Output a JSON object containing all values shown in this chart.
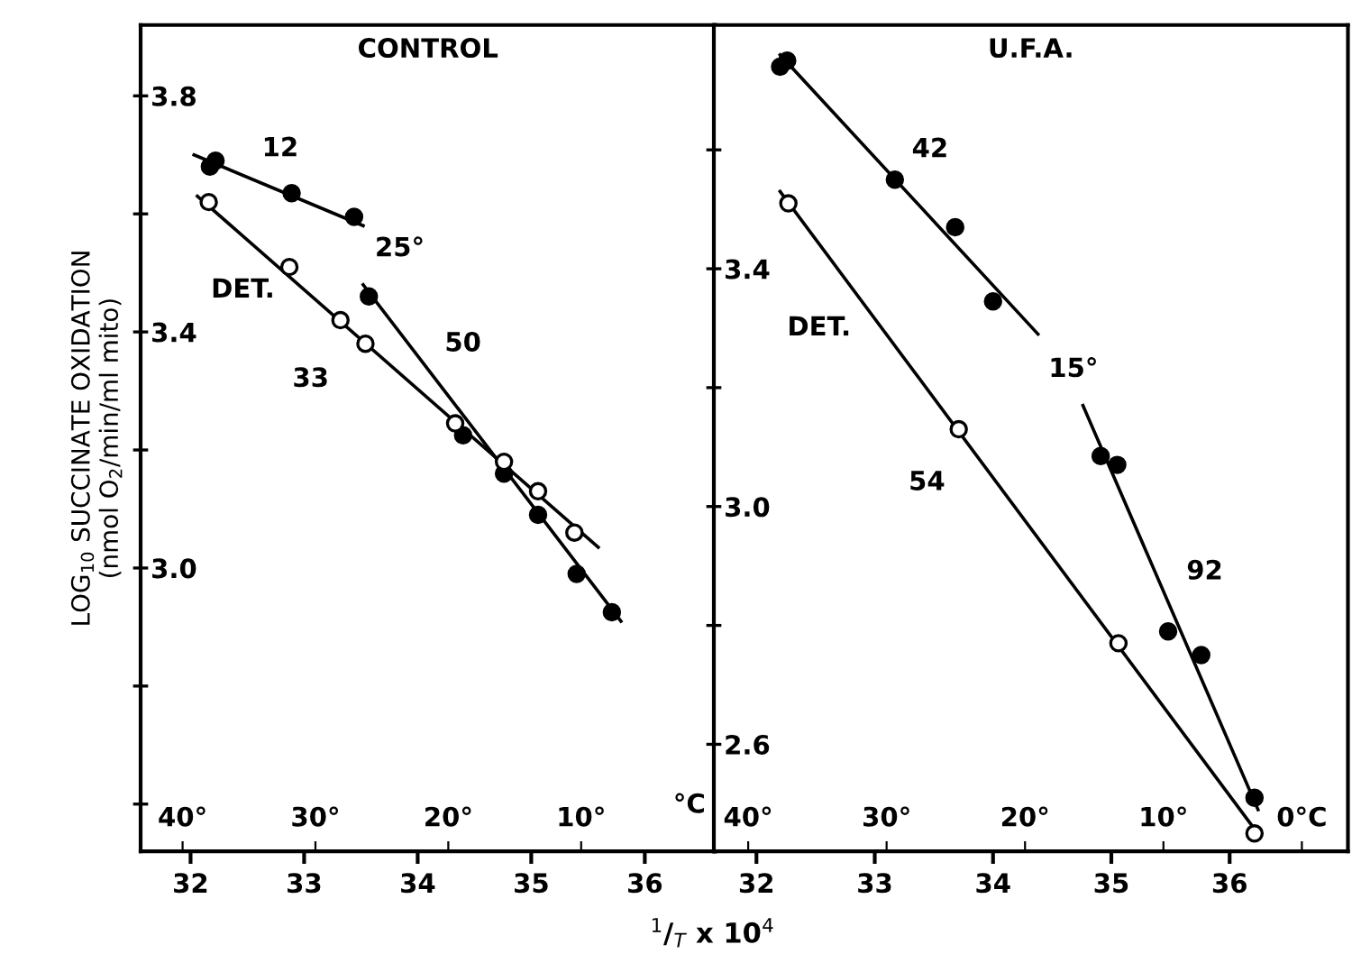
{
  "chart_data": [
    {
      "type": "scatter",
      "title": "CONTROL",
      "ylabel": "LOG$_{10}$ SUCCINATE OXIDATION\n(nmol O$_{2}$/min/ml mito)",
      "xlabel": "$^{1}$/$_{T}$ x 10$^{4}$",
      "grid": false,
      "legend": false,
      "xlim": [
        31.56,
        36.62
      ],
      "ylim": [
        2.52,
        3.92
      ],
      "xticks": [
        32,
        33,
        34,
        35,
        36
      ],
      "yticks": [
        {
          "value": 2.6,
          "label": null
        },
        {
          "value": 2.8,
          "label": null
        },
        {
          "value": 3.0,
          "label": "3.0"
        },
        {
          "value": 3.2,
          "label": null
        },
        {
          "value": 3.4,
          "label": "3.4"
        },
        {
          "value": 3.6,
          "label": null
        },
        {
          "value": 3.8,
          "label": "3.8"
        }
      ],
      "x2lim": [
        43.16,
        -0.09
      ],
      "x2label": "°C",
      "x2ticks": [
        {
          "value": 40,
          "label": "40°"
        },
        {
          "value": 30,
          "label": "30°"
        },
        {
          "value": 20,
          "label": "20°"
        },
        {
          "value": 10,
          "label": "10°"
        }
      ],
      "series": [
        {
          "type": "scatter",
          "marker": "circle",
          "color": "#000000",
          "x": [
            32.17,
            32.22,
            32.89,
            33.44,
            33.57,
            34.4,
            34.76,
            35.06,
            35.4,
            35.71
          ],
          "values": [
            3.68,
            3.69,
            3.635,
            3.595,
            3.46,
            3.225,
            3.16,
            3.09,
            2.99,
            2.925
          ]
        },
        {
          "type": "scatter",
          "marker": "circle",
          "color": "#ffffff",
          "x": [
            32.16,
            32.87,
            33.32,
            33.54,
            34.33,
            34.76,
            35.06,
            35.38
          ],
          "values": [
            3.62,
            3.51,
            3.42,
            3.38,
            3.245,
            3.18,
            3.13,
            3.06
          ]
        },
        {
          "type": "line",
          "color": "#000000",
          "x": [
            32.03,
            33.52
          ],
          "values": [
            3.7,
            3.58
          ]
        },
        {
          "type": "line",
          "color": "#000000",
          "x": [
            33.52,
            35.79
          ],
          "values": [
            3.48,
            2.91
          ]
        },
        {
          "type": "line",
          "color": "#000000",
          "x": [
            32.06,
            35.59
          ],
          "values": [
            3.63,
            3.035
          ]
        }
      ],
      "annotations": [
        "12",
        "25°",
        "DET.",
        "50",
        "33"
      ]
    },
    {
      "type": "scatter",
      "title": "U.F.A.",
      "grid": false,
      "legend": false,
      "xlim": [
        31.64,
        37.0
      ],
      "ylim": [
        2.42,
        3.81
      ],
      "xticks": [
        32,
        33,
        34,
        35,
        36
      ],
      "yticks": [
        {
          "value": 2.6,
          "label": "2.6"
        },
        {
          "value": 2.8,
          "label": null
        },
        {
          "value": 3.0,
          "label": "3.0"
        },
        {
          "value": 3.2,
          "label": null
        },
        {
          "value": 3.4,
          "label": "3.4"
        },
        {
          "value": 3.6,
          "label": null
        }
      ],
      "x2lim": [
        42.48,
        -3.33
      ],
      "x2ticks": [
        {
          "value": 40,
          "label": "40°"
        },
        {
          "value": 30,
          "label": "30°"
        },
        {
          "value": 20,
          "label": "20°"
        },
        {
          "value": 10,
          "label": "10°"
        },
        {
          "value": 0,
          "label": "0°C"
        }
      ],
      "series": [
        {
          "type": "scatter",
          "marker": "circle",
          "color": "#000000",
          "x": [
            32.2,
            32.26,
            33.17,
            33.68,
            34.0,
            34.91,
            35.05,
            35.48,
            35.76,
            36.21
          ],
          "values": [
            3.74,
            3.75,
            3.55,
            3.47,
            3.345,
            3.085,
            3.07,
            2.79,
            2.75,
            2.51
          ]
        },
        {
          "type": "scatter",
          "marker": "circle",
          "color": "#ffffff",
          "x": [
            32.27,
            33.71,
            35.06,
            36.21
          ],
          "values": [
            3.51,
            3.13,
            2.77,
            2.45
          ]
        },
        {
          "type": "line",
          "color": "#000000",
          "x": [
            32.2,
            34.38
          ],
          "values": [
            3.76,
            3.29
          ]
        },
        {
          "type": "line",
          "color": "#000000",
          "x": [
            34.76,
            36.24
          ],
          "values": [
            3.17,
            2.49
          ]
        },
        {
          "type": "line",
          "color": "#000000",
          "x": [
            32.2,
            36.2
          ],
          "values": [
            3.53,
            2.46
          ]
        }
      ],
      "annotations": [
        "42",
        "15°",
        "DET.",
        "54",
        "92"
      ]
    }
  ]
}
